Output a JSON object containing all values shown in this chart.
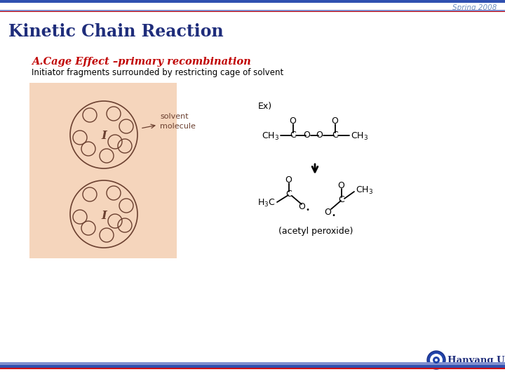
{
  "title": "Kinetic Chain Reaction",
  "spring_label": "Spring 2008",
  "section_label": "A.Cage Effect –primary recombination",
  "subtitle": "Initiator fragments surrounded by restricting cage of solvent",
  "ex_label": "Ex)",
  "solvent_label": "solvent\nmolecule",
  "acetyl_label": "(acetyl peroxide)",
  "hanyang_label": "Hanyang Univ",
  "bg_color": "#ffffff",
  "title_color": "#1f2d7b",
  "spring_color": "#7090c0",
  "section_color": "#c00000",
  "subtitle_color": "#000000",
  "cage_bg": "#f5d5bc",
  "cage_outline": "#6b4030",
  "top_bar_color": "#3050b0",
  "bottom_bar_color": "#cc0000",
  "chem_color": "#000000",
  "hanyang_color": "#1f2d7b"
}
